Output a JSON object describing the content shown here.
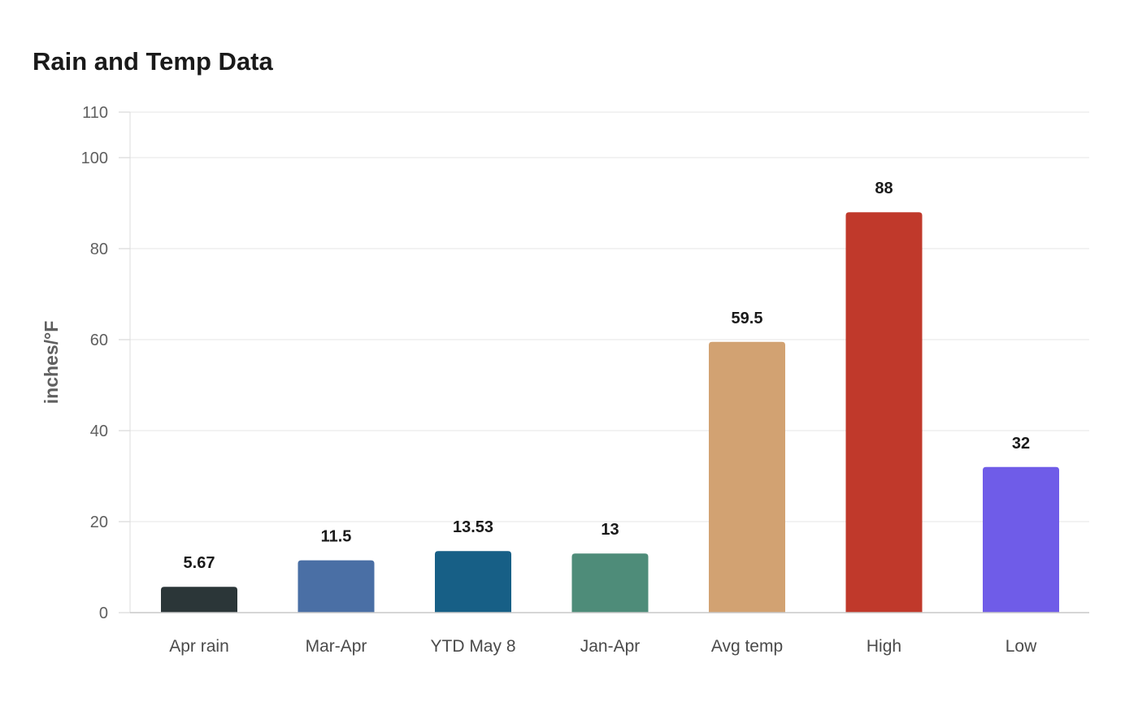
{
  "chart_data": {
    "type": "bar",
    "title": "Rain and Temp Data",
    "xlabel": "",
    "ylabel": "inches/°F",
    "ylim": [
      0,
      110
    ],
    "yticks": [
      0,
      20,
      40,
      60,
      80,
      100,
      110
    ],
    "grid": true,
    "categories": [
      "Apr rain",
      "Mar-Apr",
      "YTD May 8",
      "Jan-Apr",
      "Avg temp",
      "High",
      "Low"
    ],
    "values": [
      5.67,
      11.5,
      13.53,
      13,
      59.5,
      88,
      32
    ],
    "value_labels": [
      "5.67",
      "11.5",
      "13.53",
      "13",
      "59.5",
      "88",
      "32"
    ],
    "colors": [
      "#2b3638",
      "#4a6fa5",
      "#175f86",
      "#4e8c79",
      "#d2a272",
      "#c0392b",
      "#6f5ce8"
    ]
  }
}
